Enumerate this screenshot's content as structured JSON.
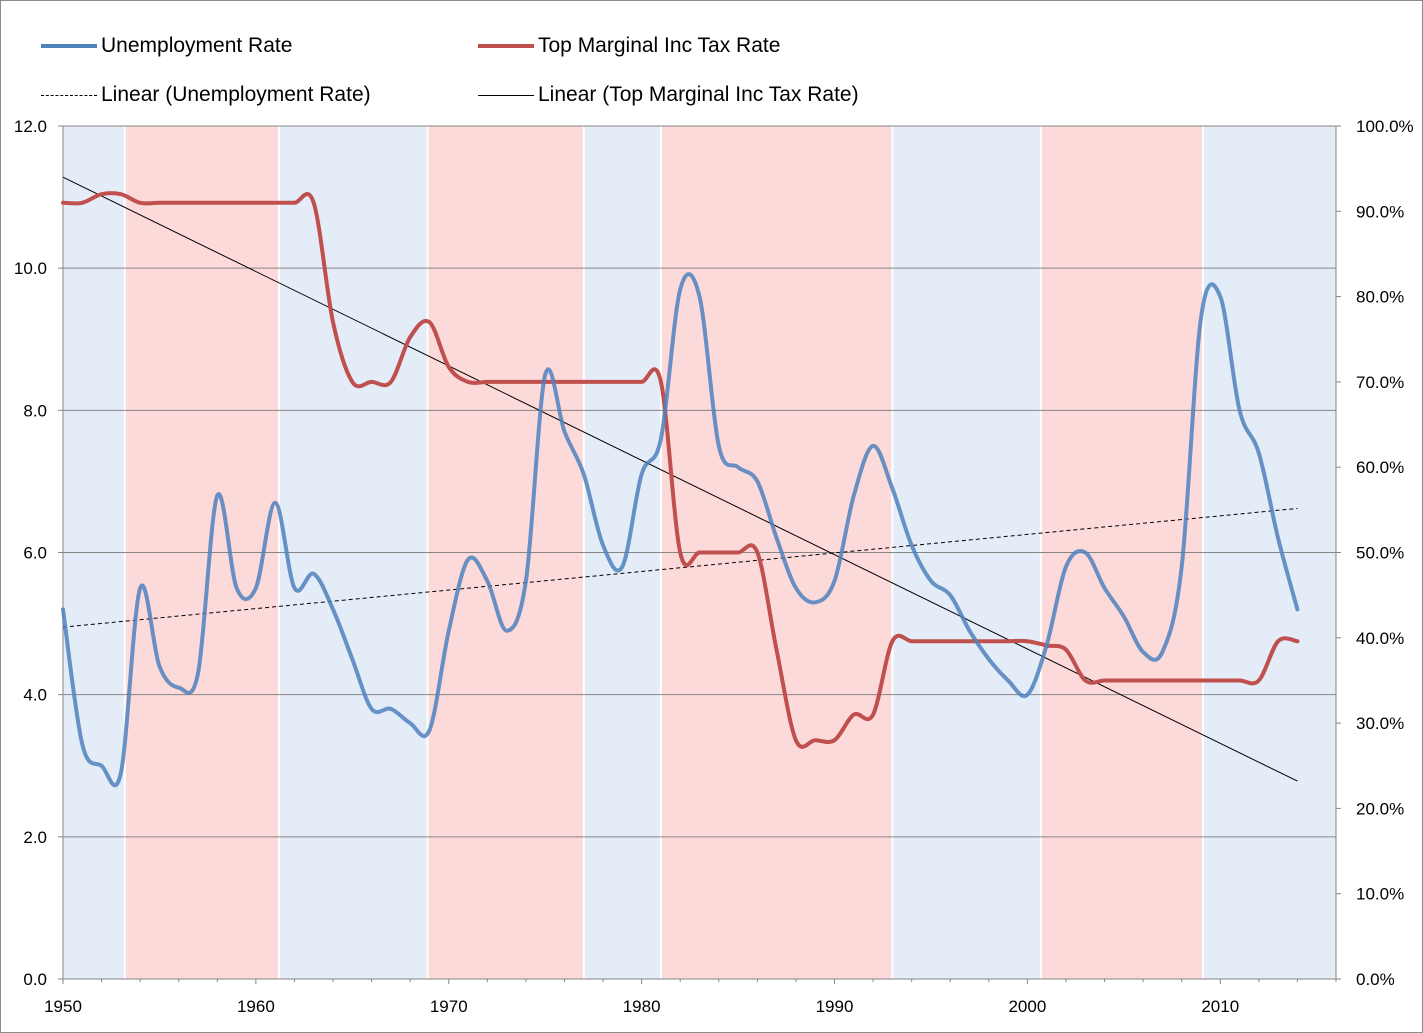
{
  "chart_data": {
    "type": "line",
    "title": "",
    "xlabel": "",
    "ylabel": "",
    "y2label": "",
    "x_range": [
      1950,
      2016
    ],
    "x_ticks": [
      1950,
      1960,
      1970,
      1980,
      1990,
      2000,
      2010
    ],
    "ylim": [
      0,
      12
    ],
    "y_ticks": [
      "0.0",
      "2.0",
      "4.0",
      "6.0",
      "8.0",
      "10.0",
      "12.0"
    ],
    "y2lim": [
      0,
      100
    ],
    "y2_ticks": [
      "0.0%",
      "10.0%",
      "20.0%",
      "30.0%",
      "40.0%",
      "50.0%",
      "60.0%",
      "70.0%",
      "80.0%",
      "90.0%",
      "100.0%"
    ],
    "grid": true,
    "legend_position": "top",
    "background_bands": [
      {
        "start": 1950.0,
        "end": 1953.2,
        "color": "#e4ecf7"
      },
      {
        "start": 1953.2,
        "end": 1961.2,
        "color": "#fcdada"
      },
      {
        "start": 1961.2,
        "end": 1968.9,
        "color": "#e4ecf7"
      },
      {
        "start": 1968.9,
        "end": 1977.0,
        "color": "#fcdada"
      },
      {
        "start": 1977.0,
        "end": 1981.0,
        "color": "#e4ecf7"
      },
      {
        "start": 1981.0,
        "end": 1993.0,
        "color": "#fcdada"
      },
      {
        "start": 1993.0,
        "end": 2000.7,
        "color": "#e4ecf7"
      },
      {
        "start": 2000.7,
        "end": 2009.1,
        "color": "#fcdada"
      },
      {
        "start": 2009.1,
        "end": 2016.0,
        "color": "#e4ecf7"
      }
    ],
    "series": [
      {
        "name": "Unemployment Rate",
        "axis": "left",
        "color": "#4f81bd",
        "x": [
          1950,
          1951,
          1952,
          1953,
          1954,
          1955,
          1956,
          1957,
          1958,
          1959,
          1960,
          1961,
          1962,
          1963,
          1964,
          1965,
          1966,
          1967,
          1968,
          1969,
          1970,
          1971,
          1972,
          1973,
          1974,
          1975,
          1976,
          1977,
          1978,
          1979,
          1980,
          1981,
          1982,
          1983,
          1984,
          1985,
          1986,
          1987,
          1988,
          1989,
          1990,
          1991,
          1992,
          1993,
          1994,
          1995,
          1996,
          1997,
          1998,
          1999,
          2000,
          2001,
          2002,
          2003,
          2004,
          2005,
          2006,
          2007,
          2008,
          2009,
          2010,
          2011,
          2012,
          2013,
          2014
        ],
        "values": [
          5.2,
          3.3,
          3.0,
          2.9,
          5.5,
          4.4,
          4.1,
          4.3,
          6.8,
          5.5,
          5.5,
          6.7,
          5.5,
          5.7,
          5.2,
          4.5,
          3.8,
          3.8,
          3.6,
          3.5,
          4.9,
          5.9,
          5.6,
          4.9,
          5.6,
          8.5,
          7.7,
          7.1,
          6.1,
          5.8,
          7.1,
          7.6,
          9.7,
          9.6,
          7.5,
          7.2,
          7.0,
          6.2,
          5.5,
          5.3,
          5.6,
          6.8,
          7.5,
          6.9,
          6.1,
          5.6,
          5.4,
          4.9,
          4.5,
          4.2,
          4.0,
          4.7,
          5.8,
          6.0,
          5.5,
          5.1,
          4.6,
          4.6,
          5.8,
          9.3,
          9.6,
          8.0,
          7.4,
          6.2,
          5.2
        ]
      },
      {
        "name": "Top Marginal Inc Tax Rate",
        "axis": "right",
        "color": "#c0504d",
        "x": [
          1950,
          1951,
          1952,
          1953,
          1954,
          1955,
          1956,
          1957,
          1958,
          1959,
          1960,
          1961,
          1962,
          1963,
          1964,
          1965,
          1966,
          1967,
          1968,
          1969,
          1970,
          1971,
          1972,
          1973,
          1974,
          1975,
          1976,
          1977,
          1978,
          1979,
          1980,
          1981,
          1982,
          1983,
          1984,
          1985,
          1986,
          1987,
          1988,
          1989,
          1990,
          1991,
          1992,
          1993,
          1994,
          1995,
          1996,
          1997,
          1998,
          1999,
          2000,
          2001,
          2002,
          2003,
          2004,
          2005,
          2006,
          2007,
          2008,
          2009,
          2010,
          2011,
          2012,
          2013,
          2014
        ],
        "values": [
          91,
          91,
          92,
          92,
          91,
          91,
          91,
          91,
          91,
          91,
          91,
          91,
          91,
          91,
          77,
          70,
          70,
          70,
          75.25,
          77,
          71.75,
          70,
          70,
          70,
          70,
          70,
          70,
          70,
          70,
          70,
          70,
          70,
          50,
          50,
          50,
          50,
          50,
          38.5,
          28,
          28,
          28,
          31,
          31,
          39.6,
          39.6,
          39.6,
          39.6,
          39.6,
          39.6,
          39.6,
          39.6,
          39.1,
          38.6,
          35,
          35,
          35,
          35,
          35,
          35,
          35,
          35,
          35,
          35,
          39.6,
          39.6
        ]
      },
      {
        "name": "Linear (Unemployment Rate)",
        "axis": "left",
        "color": "#000000",
        "dash": "4,3",
        "trendline_of": "Unemployment Rate",
        "x": [
          1950,
          2014
        ],
        "values": [
          4.95,
          6.62
        ]
      },
      {
        "name": "Linear (Top Marginal Inc Tax Rate)",
        "axis": "right",
        "color": "#000000",
        "trendline_of": "Top Marginal Inc Tax Rate",
        "x": [
          1950,
          2014
        ],
        "values": [
          94.0,
          23.2
        ]
      }
    ]
  }
}
